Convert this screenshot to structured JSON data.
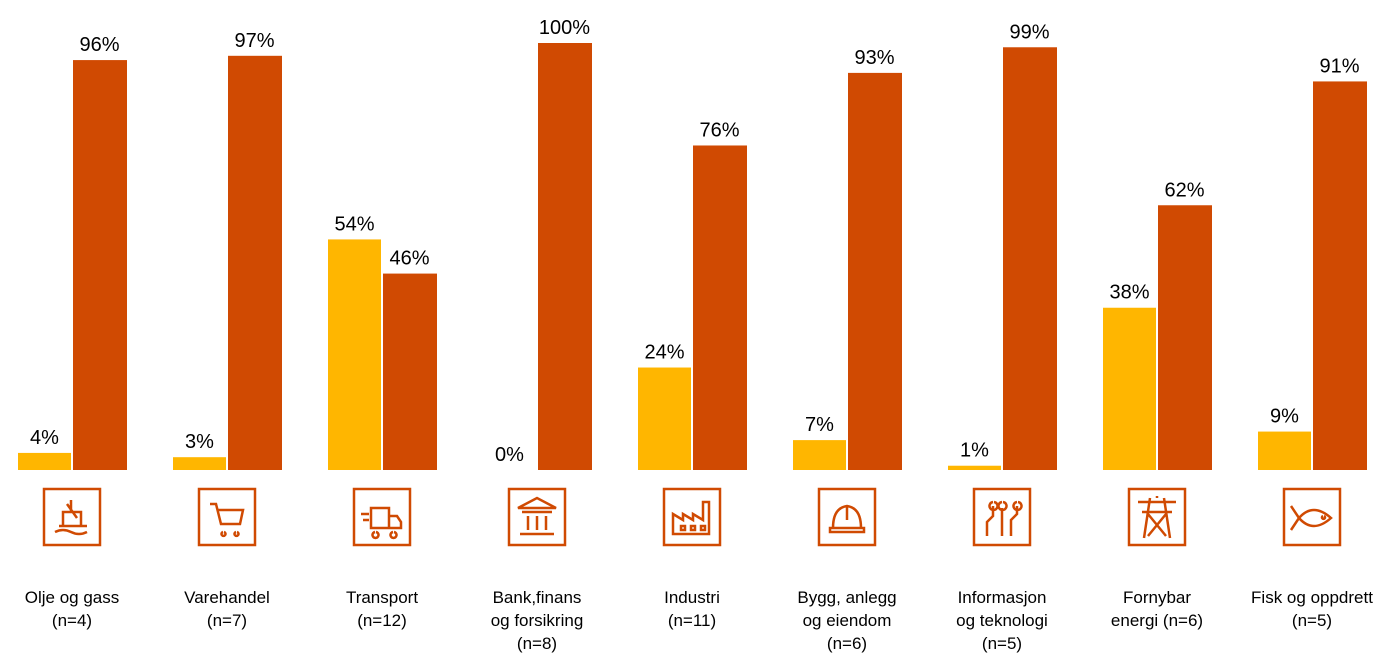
{
  "chart_data": {
    "type": "bar",
    "categories": [
      "Olje og gass\n(n=4)",
      "Varehandel\n(n=7)",
      "Transport\n(n=12)",
      "Bank,finans\nog forsikring\n(n=8)",
      "Industri\n(n=11)",
      "Bygg, anlegg\nog eiendom\n(n=6)",
      "Informasjon\nog teknologi\n(n=5)",
      "Fornybar\nenergi (n=6)",
      "Fisk og oppdrett\n(n=5)"
    ],
    "series": [
      {
        "color": "#FFB600",
        "values": [
          4,
          3,
          54,
          0,
          24,
          7,
          1,
          38,
          9
        ],
        "value_labels": [
          "4%",
          "3%",
          "54%",
          "0%",
          "24%",
          "7%",
          "1%",
          "38%",
          "9%"
        ]
      },
      {
        "color": "#D04A02",
        "values": [
          96,
          97,
          46,
          100,
          76,
          93,
          99,
          62,
          91
        ],
        "value_labels": [
          "96%",
          "97%",
          "46%",
          "100%",
          "76%",
          "93%",
          "99%",
          "62%",
          "91%"
        ]
      }
    ],
    "ylim": [
      0,
      100
    ]
  }
}
